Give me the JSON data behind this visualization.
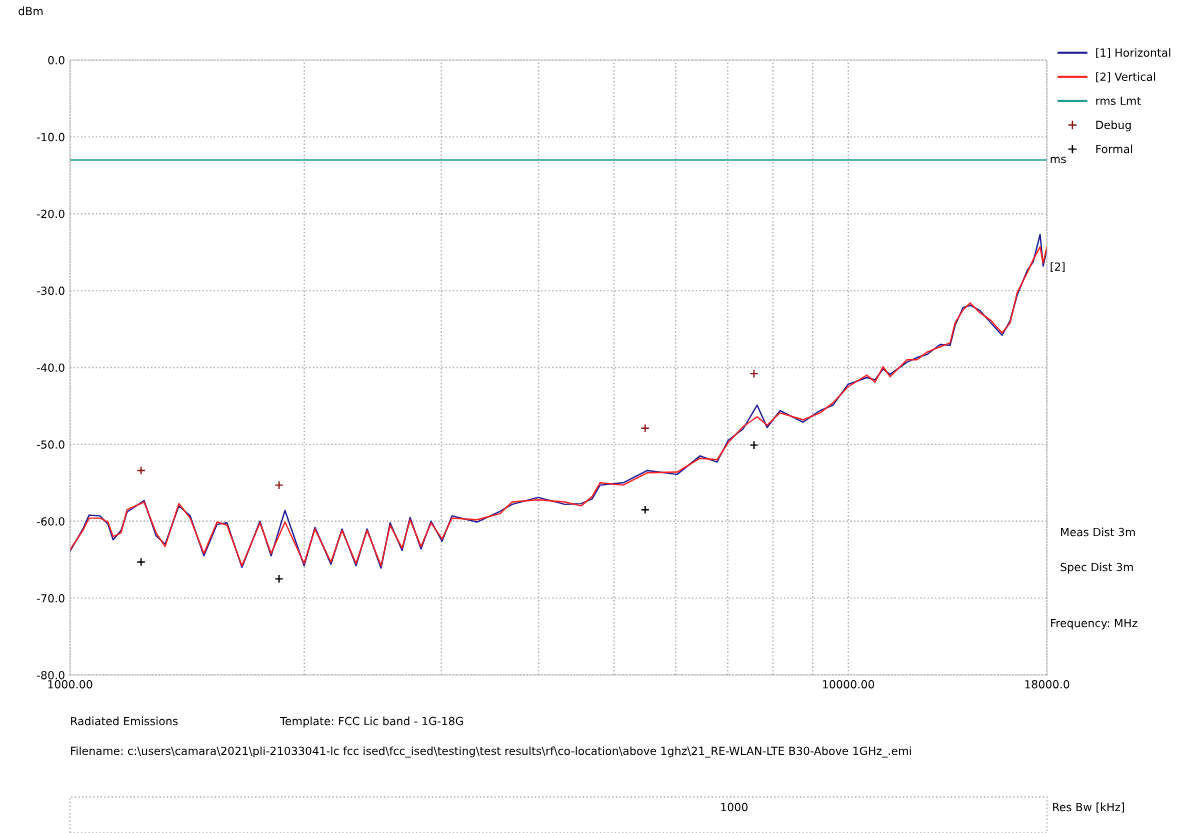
{
  "chart_data": {
    "type": "line",
    "ylabel": "dBm",
    "log": "x",
    "grid": true,
    "legend": "top right",
    "xlim": [
      1000,
      18000
    ],
    "ylim": [
      -80,
      0
    ],
    "xticks": [
      {
        "value": 1000,
        "label": "1000.00"
      },
      {
        "value": 2000,
        "label": null
      },
      {
        "value": 3000,
        "label": null
      },
      {
        "value": 4000,
        "label": null
      },
      {
        "value": 5000,
        "label": null
      },
      {
        "value": 6000,
        "label": null
      },
      {
        "value": 7000,
        "label": null
      },
      {
        "value": 8000,
        "label": null
      },
      {
        "value": 9000,
        "label": null
      },
      {
        "value": 10000,
        "label": "10000.00"
      },
      {
        "value": 18000,
        "label": "18000.0"
      }
    ],
    "yticks": [
      {
        "value": 0,
        "label": "0.0"
      },
      {
        "value": -10,
        "label": "-10.0"
      },
      {
        "value": -20,
        "label": "-20.0"
      },
      {
        "value": -30,
        "label": "-30.0"
      },
      {
        "value": -40,
        "label": "-40.0"
      },
      {
        "value": -50,
        "label": "-50.0"
      },
      {
        "value": -60,
        "label": "-60.0"
      },
      {
        "value": -70,
        "label": "-70.0"
      },
      {
        "value": -80,
        "label": "-80.0"
      }
    ],
    "x": [
      1000,
      1039,
      1058,
      1093,
      1119,
      1136,
      1163,
      1184,
      1245,
      1290,
      1325,
      1380,
      1427,
      1486,
      1545,
      1591,
      1663,
      1754,
      1813,
      1889,
      1999,
      2064,
      2164,
      2236,
      2331,
      2408,
      2510,
      2578,
      2671,
      2735,
      2825,
      2910,
      3006,
      3096,
      3333,
      3569,
      3698,
      3994,
      4325,
      4536,
      4686,
      4797,
      5135,
      5513,
      6026,
      6451,
      6782,
      7006,
      7324,
      7636,
      7864,
      8170,
      8745,
      9196,
      9557,
      9991,
      10568,
      10822,
      11081,
      11313,
      11896,
      12254,
      12622,
      13119,
      13514,
      13716,
      14045,
      14339,
      14769,
      15212,
      15761,
      16140,
      16478,
      16971,
      17275,
      17637,
      17796,
      18000
    ],
    "series": [
      {
        "name": "[1] Horizontal",
        "color": "#1c1c9a",
        "marker": "none",
        "values": [
          -63.9,
          -61.0,
          -59.2,
          -59.3,
          -60.4,
          -62.4,
          -61.2,
          -58.8,
          -57.3,
          -61.9,
          -63.0,
          -58.0,
          -59.3,
          -64.5,
          -60.4,
          -60.2,
          -66.0,
          -60.0,
          -64.5,
          -58.6,
          -65.8,
          -60.8,
          -65.6,
          -61.0,
          -65.8,
          -61.0,
          -66.1,
          -60.2,
          -63.8,
          -59.5,
          -63.6,
          -60.0,
          -62.6,
          -59.3,
          -60.1,
          -58.7,
          -57.8,
          -56.9,
          -57.8,
          -57.7,
          -57.1,
          -55.3,
          -55.0,
          -53.4,
          -53.9,
          -51.5,
          -52.3,
          -49.5,
          -48.0,
          -44.9,
          -47.8,
          -45.6,
          -47.1,
          -45.6,
          -44.9,
          -42.2,
          -41.3,
          -41.6,
          -40.2,
          -40.9,
          -39.3,
          -38.7,
          -38.3,
          -37.0,
          -37.1,
          -34.5,
          -32.2,
          -31.9,
          -32.6,
          -34.1,
          -35.8,
          -33.9,
          -30.6,
          -27.4,
          -26.3,
          -22.7,
          -26.8,
          -24.6
        ]
      },
      {
        "name": "[2] Vertical",
        "color": "#ff2020",
        "marker": "none",
        "values": [
          -63.7,
          -61.2,
          -59.6,
          -59.6,
          -60.1,
          -62.0,
          -61.5,
          -58.5,
          -57.5,
          -61.5,
          -63.3,
          -57.7,
          -59.6,
          -64.2,
          -60.1,
          -60.5,
          -65.8,
          -60.2,
          -64.2,
          -60.1,
          -65.5,
          -61.0,
          -65.3,
          -61.2,
          -65.5,
          -61.2,
          -65.8,
          -60.5,
          -63.5,
          -59.8,
          -63.3,
          -60.2,
          -62.3,
          -59.6,
          -59.8,
          -59.0,
          -57.5,
          -57.2,
          -57.5,
          -58.0,
          -56.8,
          -55.0,
          -55.3,
          -53.7,
          -53.6,
          -51.8,
          -52.0,
          -49.8,
          -47.7,
          -46.4,
          -47.5,
          -45.9,
          -46.8,
          -45.9,
          -44.6,
          -42.5,
          -41.0,
          -41.9,
          -39.9,
          -41.2,
          -39.0,
          -39.0,
          -38.0,
          -37.3,
          -36.8,
          -34.2,
          -32.5,
          -31.6,
          -32.9,
          -33.8,
          -35.5,
          -34.2,
          -30.3,
          -27.7,
          -26.0,
          -24.3,
          -26.4,
          -24.3
        ]
      },
      {
        "name": "rms Lmt",
        "color": "#20a090",
        "marker": "none",
        "x": [
          1000,
          18000
        ],
        "values": [
          -13,
          -13
        ]
      },
      {
        "name": "Debug",
        "type": "scatter",
        "color": "#8b1a1a",
        "marker": "cross",
        "x": [
          1234,
          1856,
          5482,
          7565
        ],
        "values": [
          -53.4,
          -55.3,
          -47.9,
          -40.8
        ]
      },
      {
        "name": "Formal",
        "type": "scatter",
        "color": "#000000",
        "marker": "cross",
        "x": [
          1234,
          1856,
          5482,
          7565
        ],
        "values": [
          -65.3,
          -67.5,
          -58.5,
          -50.1
        ]
      }
    ],
    "annotations": [
      "Radiated Emissions",
      "Template: FCC Lic band - 1G-18G",
      "Filename: c:\\users\\camara\\2021\\pli-21033041-lc fcc ised\\fcc_ised\\testing\\test results\\rf\\co-location\\above 1ghz\\21_RE-WLAN-LTE B30-Above 1GHz_.emi",
      "Meas Dist 3m",
      "Spec Dist 3m",
      "Frequency: MHz",
      "1000",
      "Res Bw [kHz]",
      {
        "text": "ms",
        "x": 18000,
        "y": -13
      },
      {
        "text": "[2]",
        "x": 18000,
        "y": -27
      }
    ]
  }
}
